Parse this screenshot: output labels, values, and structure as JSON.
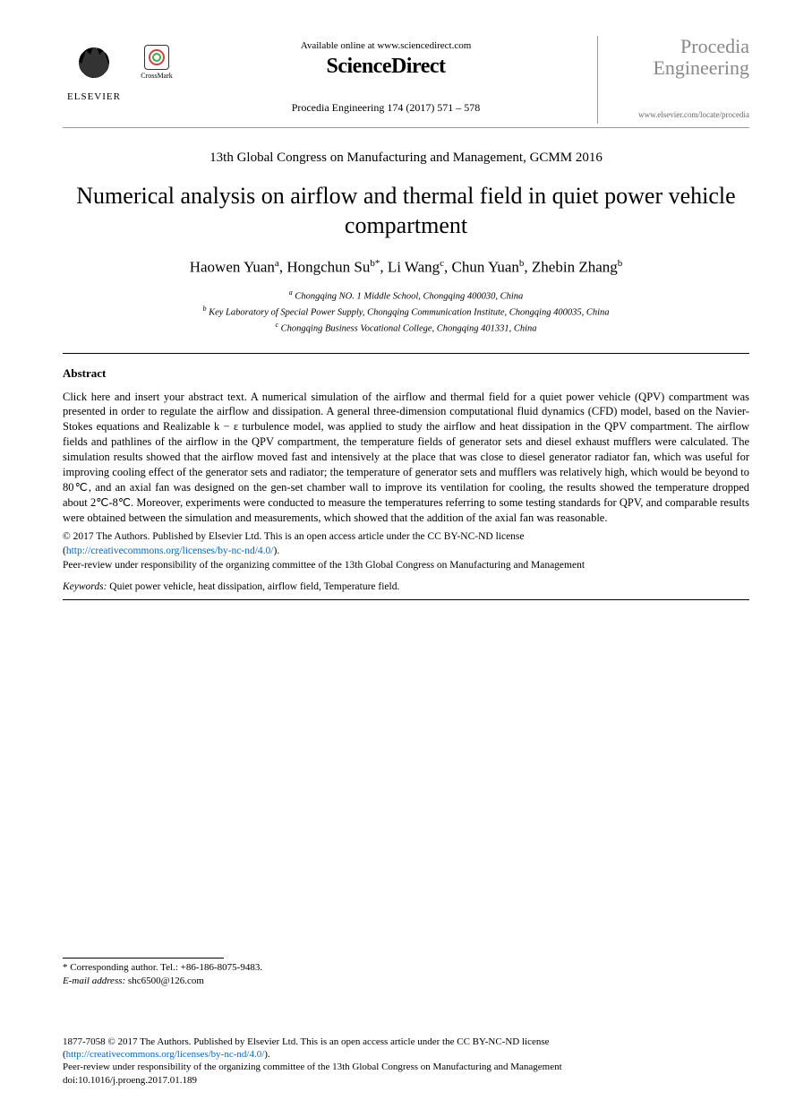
{
  "header": {
    "elsevier_label": "ELSEVIER",
    "crossmark_label": "CrossMark",
    "available_online": "Available online at www.sciencedirect.com",
    "sciencedirect": "ScienceDirect",
    "citation": "Procedia Engineering 174 (2017) 571 – 578",
    "journal_name_1": "Procedia",
    "journal_name_2": "Engineering",
    "journal_url": "www.elsevier.com/locate/procedia"
  },
  "conference": "13th Global Congress on Manufacturing and Management, GCMM 2016",
  "title": "Numerical analysis on airflow and thermal field in quiet power vehicle compartment",
  "authors_html": "Haowen Yuan<sup>a</sup>, Hongchun Su<sup>b*</sup>, Li Wang<sup>c</sup>, Chun Yuan<sup>b</sup>, Zhebin Zhang<sup>b</sup>",
  "affiliations": {
    "a": "Chongqing NO. 1 Middle School, Chongqing 400030, China",
    "b": "Key Laboratory of Special Power Supply, Chongqing Communication Institute, Chongqing  400035, China",
    "c": "Chongqing Business Vocational College, Chongqing  401331, China"
  },
  "abstract_heading": "Abstract",
  "abstract_text": "Click here and insert your abstract text. A numerical simulation of the airflow and thermal field for a quiet power vehicle (QPV) compartment was presented in order to regulate the airflow and dissipation. A general three-dimension computational fluid dynamics (CFD) model, based on the Navier-Stokes equations and Realizable k − ε turbulence model, was applied to study the airflow and heat dissipation in the QPV compartment. The airflow fields and pathlines of the airflow in the QPV compartment, the temperature fields of generator sets and diesel exhaust mufflers were calculated. The simulation results showed that the airflow moved fast and intensively at the place that was close to diesel generator radiator fan, which was useful for improving cooling effect of the generator sets and radiator; the temperature of generator sets and mufflers was relatively high, which would be beyond to 80℃, and an axial fan was designed on the gen-set chamber wall to improve its ventilation for cooling, the results showed the temperature dropped about 2℃-8℃. Moreover, experiments were conducted to measure the temperatures referring to some testing standards for QPV, and comparable results were obtained between the simulation and measurements, which showed that the addition of the axial fan was reasonable.",
  "copyright": {
    "line1": "© 2017 The Authors. Published by Elsevier Ltd. This is an open access article under the CC BY-NC-ND license",
    "license_url_text": "http://creativecommons.org/licenses/by-nc-nd/4.0/",
    "line2": "Peer-review under responsibility of the organizing committee of the 13th Global Congress on Manufacturing and Management"
  },
  "keywords_label": "Keywords:",
  "keywords_text": " Quiet power vehicle,  heat dissipation,  airflow field, Temperature field.",
  "corresponding": {
    "line1": "* Corresponding author. Tel.: +86-186-8075-9483.",
    "email_label": "E-mail address:",
    "email": " shc6500@126.com"
  },
  "footer": {
    "issn_line": "1877-7058 © 2017 The Authors. Published by Elsevier Ltd. This is an open access article under the CC BY-NC-ND license",
    "license_url_text": "http://creativecommons.org/licenses/by-nc-nd/4.0/",
    "peer_review": "Peer-review under responsibility of the organizing committee of the 13th Global Congress on Manufacturing and Management",
    "doi": "doi:10.1016/j.proeng.2017.01.189"
  },
  "colors": {
    "text": "#000000",
    "link": "#0066cc",
    "journal_gray": "#888888",
    "rule_gray": "#999999",
    "background": "#ffffff"
  }
}
